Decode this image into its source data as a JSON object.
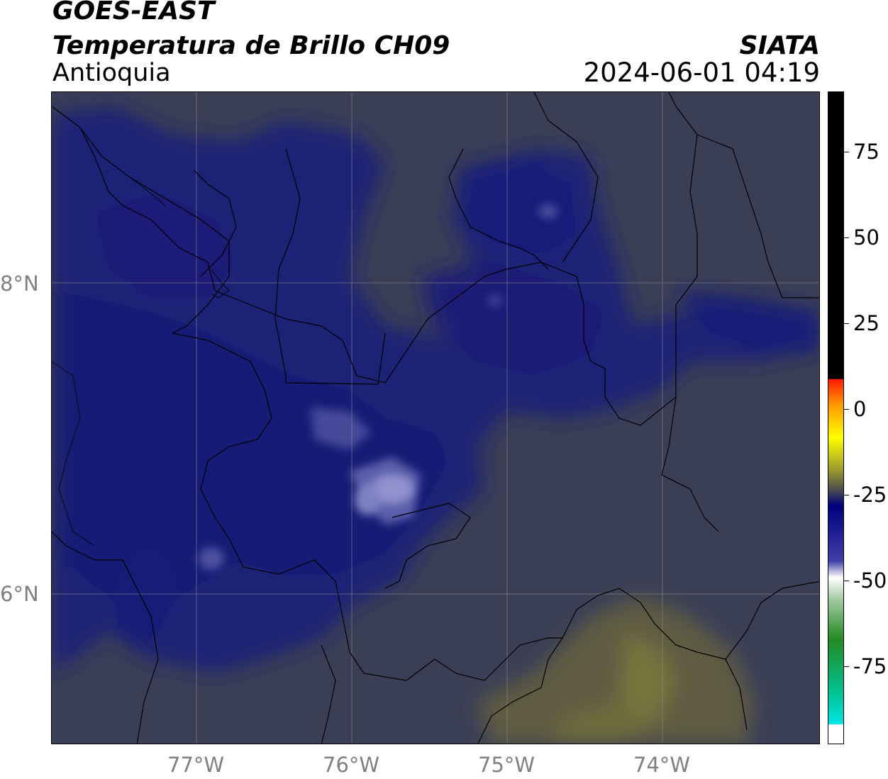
{
  "header": {
    "satellite": "GOES-EAST",
    "product": "Temperatura de Brillo CH09",
    "region": "Antioquia",
    "agency": "SIATA",
    "timestamp": "2024-06-01 04:19"
  },
  "map": {
    "graticule_lat_labels": [
      "8°N",
      "6°N"
    ],
    "graticule_lon_labels": [
      "77°W",
      "76°W",
      "75°W",
      "74°W"
    ],
    "field_colors": {
      "background_gray": "#3b3f56",
      "dark_navy": "#1b1f76",
      "deep_blue": "#14186e",
      "light_blue": "#7c7fc0",
      "olive": "#6e6b3d"
    }
  },
  "colorbar": {
    "tick_labels": [
      "75",
      "50",
      "25",
      "0",
      "-25",
      "-50",
      "-75"
    ],
    "colors": {
      "black": "#000000",
      "red": "#ff1a00",
      "orange": "#ff9900",
      "yellow": "#ffff00",
      "gray": "#4d4d4d",
      "navy": "#000080",
      "white": "#ffffff",
      "green": "#228b22",
      "cyan": "#00e5e5"
    }
  }
}
